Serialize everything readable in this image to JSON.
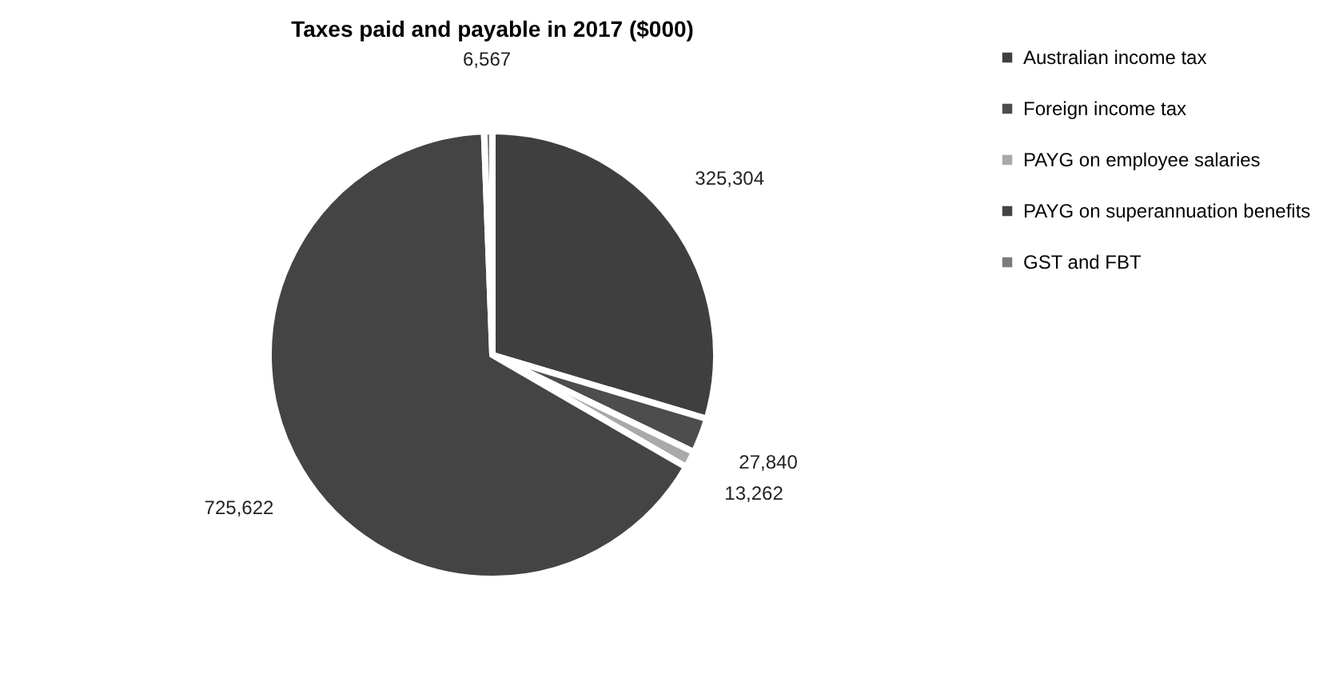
{
  "chart_data": {
    "type": "pie",
    "title": "Taxes paid and payable in 2017 ($000)",
    "categories": [
      "Australian income tax",
      "Foreign income tax",
      "PAYG on employee salaries",
      "PAYG on superannuation benefits",
      "GST and FBT"
    ],
    "values": [
      325304,
      27840,
      13262,
      725622,
      6567
    ],
    "colors": [
      "#3f3f3f",
      "#4d4d4d",
      "#a9a9a9",
      "#444444",
      "#7c7c7c"
    ],
    "value_labels": [
      "325,304",
      "27,840",
      "13,262",
      "725,622",
      "6,567"
    ],
    "legend": "right"
  }
}
